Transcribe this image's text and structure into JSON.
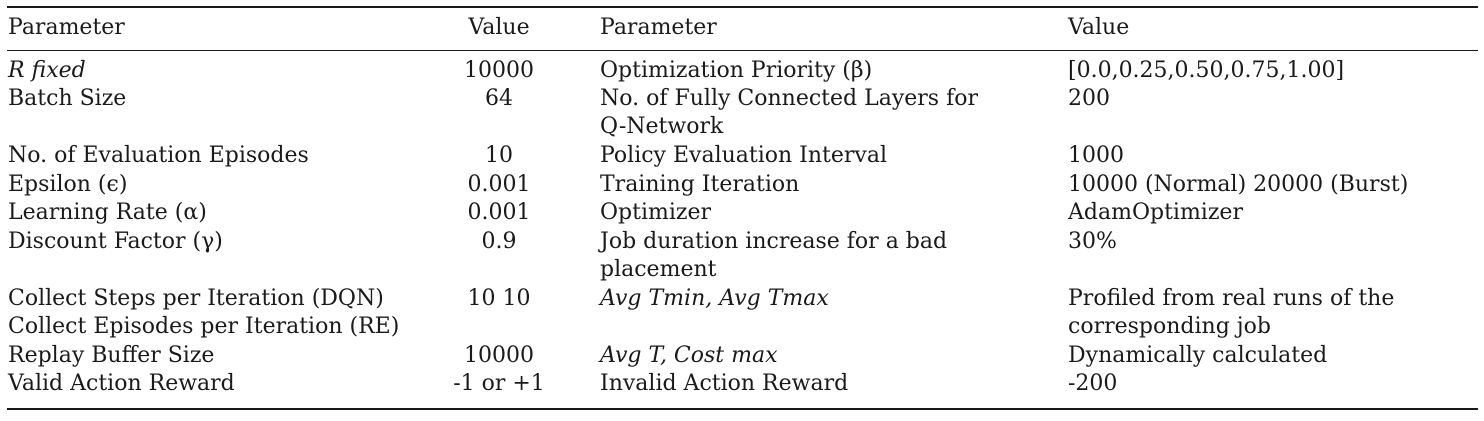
{
  "header": {
    "col1": "Parameter",
    "col2": "Value",
    "col3": "Parameter",
    "col4": "Value"
  },
  "rows": [
    {
      "p1": "R fixed",
      "v1": "10000",
      "p2": "Optimization Priority (β)",
      "v2": "[0.0,0.25,0.50,0.75,1.00]"
    },
    {
      "p1": "Batch Size",
      "v1": "64",
      "p2": "No. of Fully Connected Layers for",
      "p2b": "Q-Network",
      "v2": "200"
    },
    {
      "p1": "No. of Evaluation Episodes",
      "v1": "10",
      "p2": "Policy Evaluation Interval",
      "v2": "1000"
    },
    {
      "p1": "Epsilon (ϵ)",
      "v1": "0.001",
      "p2": "Training Iteration",
      "v2": "10000 (Normal) 20000 (Burst)"
    },
    {
      "p1": "Learning Rate (α)",
      "v1": "0.001",
      "p2": "Optimizer",
      "v2": "AdamOptimizer"
    },
    {
      "p1": "Discount Factor (γ)",
      "v1": "0.9",
      "p2": "Job duration increase for a bad",
      "p2b": "placement",
      "v2": "30%"
    },
    {
      "p1": "Collect Steps per Iteration (DQN)",
      "p1b": "Collect Episodes per Iteration (RE)",
      "v1": "10 10",
      "p2": "Avg Tmin, Avg Tmax",
      "v2": "Profiled from real runs of the",
      "v2b": "corresponding job"
    },
    {
      "p1": "Replay Buffer Size",
      "v1": "10000",
      "p2": "Avg T, Cost max",
      "v2": "Dynamically calculated"
    },
    {
      "p1": "Valid Action Reward",
      "v1": "-1 or +1",
      "p2": "Invalid Action Reward",
      "v2": "-200"
    }
  ]
}
